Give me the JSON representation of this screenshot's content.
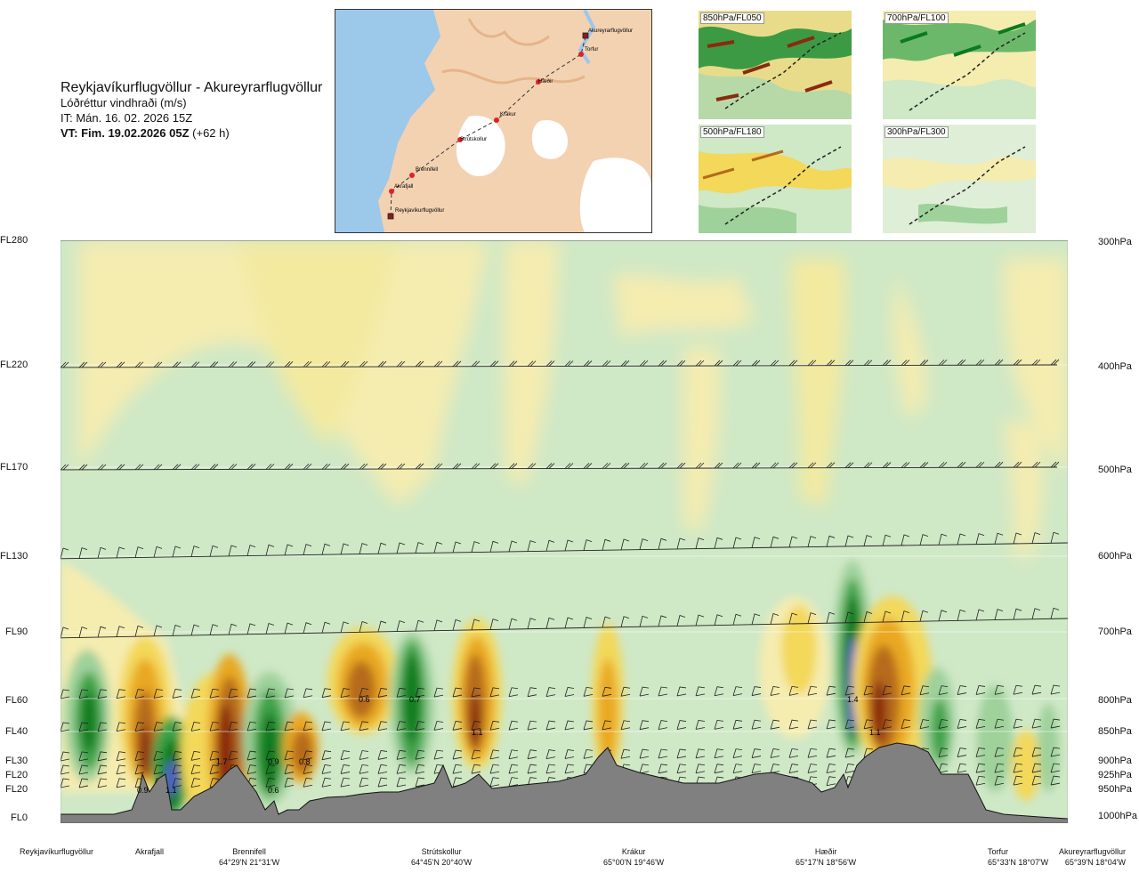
{
  "title": {
    "route": "Reykjavíkurflugvöllur - Akureyrarflugvöllur",
    "variable": "Lóðréttur vindhraði (m/s)",
    "init_time": "IT: Mán. 16. 02. 2026 15Z",
    "valid_label": "VT: Fim. 19.02.2026 05Z",
    "valid_offset": "(+62 h)"
  },
  "route_map": {
    "points": [
      {
        "name": "Akureyrarflugvöllur"
      },
      {
        "name": "Torfur"
      },
      {
        "name": "Hæðir"
      },
      {
        "name": "Krákur"
      },
      {
        "name": "Strútskollur"
      },
      {
        "name": "Brennifell"
      },
      {
        "name": "Akrafjall"
      },
      {
        "name": "Reykjavíkurflugvöllur"
      }
    ],
    "colors": {
      "land": "#f3d2b2",
      "water": "#9cc8ea",
      "glacier": "#ffffff",
      "route": "#333333",
      "waypoint": "#e0202a"
    }
  },
  "mini_maps": [
    {
      "label": "850hPa/FL050"
    },
    {
      "label": "700hPa/FL100"
    },
    {
      "label": "500hPa/FL180"
    },
    {
      "label": "300hPa/FL300"
    }
  ],
  "flight_levels": [
    "FL280",
    "FL220",
    "FL170",
    "FL130",
    "FL90",
    "FL60",
    "FL40",
    "FL30",
    "FL20",
    "FL20",
    "FL0"
  ],
  "pressure_levels": [
    "300hPa",
    "400hPa",
    "500hPa",
    "600hPa",
    "700hPa",
    "800hPa",
    "850hPa",
    "900hPa",
    "925hPa",
    "950hPa",
    "1000hPa"
  ],
  "cell_values": [
    "0.9",
    "1.1",
    "1.7",
    "0.9",
    "0.6",
    "0.8",
    "0.6",
    "0.7",
    "1.1",
    "1.4",
    "1.1"
  ],
  "locations": [
    {
      "name": "Reykjavíkurflugvöllur",
      "coord": ""
    },
    {
      "name": "Akrafjall",
      "coord": ""
    },
    {
      "name": "Brennifell",
      "coord": "64°29'N 21°31'W"
    },
    {
      "name": "Strútskollur",
      "coord": "64°45'N 20°40'W"
    },
    {
      "name": "Krákur",
      "coord": "65°00'N 19°46'W"
    },
    {
      "name": "Hæðir",
      "coord": "65°17'N 18°56'W"
    },
    {
      "name": "Torfur",
      "coord": "65°33'N 18°07'W"
    },
    {
      "name": "Akureyrarflugvöllur",
      "coord": "65°39'N 18°04'W"
    }
  ],
  "colors": {
    "terrain": "#808080",
    "strong_up": "#5a5ad6",
    "up_dark": "#0a7a1e",
    "up_mid": "#3fa34a",
    "up_light": "#9fd19b",
    "neutral_pale": "#cfe8c6",
    "down_pale": "#f5ecb0",
    "down_light": "#f3d85a",
    "down_mid": "#e9a820",
    "down_dark": "#b56a1a",
    "down_strong": "#8a2a10"
  }
}
